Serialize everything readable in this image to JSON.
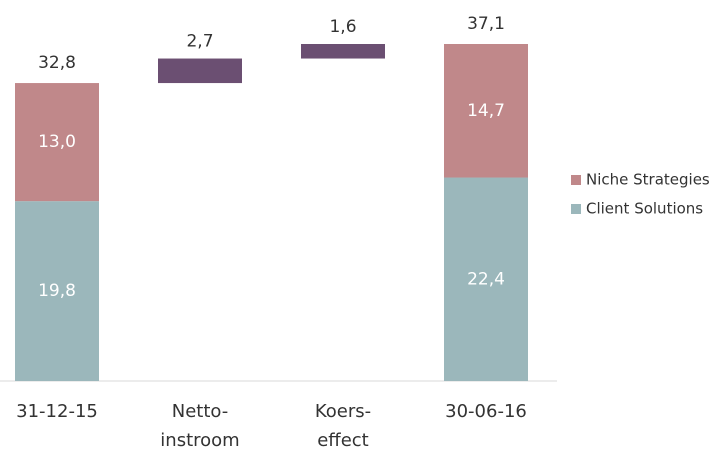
{
  "chart_data": {
    "type": "waterfall",
    "categories": [
      [
        "31-12-15"
      ],
      [
        "Netto-",
        "instroom"
      ],
      [
        "Koers-",
        "effect"
      ],
      [
        "30-06-16"
      ]
    ],
    "series": [
      {
        "name": "Client Solutions",
        "color": "#9bb7bb",
        "values": [
          19.8,
          null,
          null,
          22.4
        ],
        "value_labels": [
          "19,8",
          null,
          null,
          "22,4"
        ]
      },
      {
        "name": "Niche Strategies",
        "color": "#c0888a",
        "values": [
          13.0,
          null,
          null,
          14.7
        ],
        "value_labels": [
          "13,0",
          null,
          null,
          "14,7"
        ]
      }
    ],
    "totals": [
      32.8,
      null,
      null,
      37.1
    ],
    "total_labels": [
      "32,8",
      null,
      null,
      "37,1"
    ],
    "deltas": [
      null,
      2.7,
      1.6,
      null
    ],
    "delta_labels": [
      null,
      "2,7",
      "1,6",
      null
    ],
    "delta_color": "#6b4f72",
    "legend": "right"
  }
}
